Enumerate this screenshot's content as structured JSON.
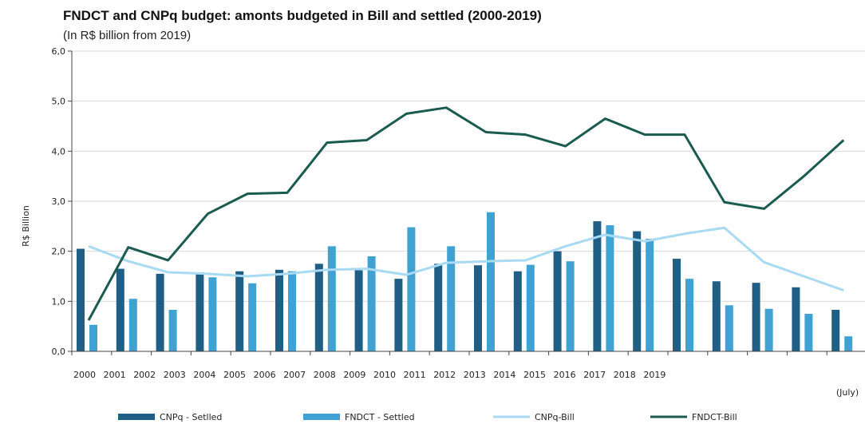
{
  "chart_data": {
    "type": "bar",
    "title": "FNDCT and CNPq budget: amonts budgeted in Bill and settled (2000-2019)",
    "subtitle": "(In R$ billion from 2019)",
    "ylabel": "R$ Billion",
    "ylim": [
      0,
      6
    ],
    "yticks": [
      "0,0",
      "1,0",
      "2,0",
      "3,0",
      "4,0",
      "5,0",
      "6,0"
    ],
    "categories": [
      "2000",
      "2001",
      "2002",
      "2003",
      "2004",
      "2005",
      "2006",
      "2007",
      "2008",
      "2009",
      "2010",
      "2011",
      "2012",
      "2013",
      "2014",
      "2015",
      "2016",
      "2017",
      "2018",
      "2019"
    ],
    "x_tick_labels": [
      "2000",
      "2001",
      "2002",
      "2003",
      "2004",
      "2005",
      "2006",
      "2007",
      "2008",
      "2009",
      "2010",
      "2011",
      "2012",
      "2013",
      "2014",
      "2015",
      "2016",
      "2017",
      "2018",
      "2019"
    ],
    "x_note": "(July)",
    "grid": true,
    "legend_position": "bottom",
    "series": [
      {
        "name": "CNPq - Setlled",
        "kind": "bar",
        "color": "#1f5f85",
        "values": [
          2.05,
          1.65,
          1.55,
          1.58,
          1.6,
          1.63,
          1.75,
          1.62,
          1.45,
          1.75,
          1.72,
          1.6,
          2.0,
          2.6,
          2.4,
          1.85,
          1.4,
          1.37,
          1.28,
          0.83
        ]
      },
      {
        "name": "FNDCT - Settled",
        "kind": "bar",
        "color": "#3fa2d2",
        "values": [
          0.53,
          1.05,
          0.83,
          1.48,
          1.36,
          1.6,
          2.1,
          1.9,
          2.48,
          2.1,
          2.78,
          1.73,
          1.8,
          2.52,
          2.25,
          1.45,
          0.92,
          0.85,
          0.75,
          0.3
        ]
      },
      {
        "name": "CNPq-Bill",
        "kind": "line",
        "color": "#a8daf3",
        "values": [
          2.1,
          1.8,
          1.58,
          1.55,
          1.5,
          1.55,
          1.63,
          1.65,
          1.53,
          1.77,
          1.8,
          1.82,
          2.1,
          2.33,
          2.2,
          2.35,
          2.47,
          1.78,
          1.5,
          1.22
        ]
      },
      {
        "name": "FNDCT-Bill",
        "kind": "line",
        "color": "#1a5b50",
        "values": [
          0.62,
          2.08,
          1.82,
          2.75,
          3.15,
          3.17,
          4.17,
          4.22,
          4.75,
          4.87,
          4.38,
          4.33,
          4.1,
          4.65,
          4.33,
          4.33,
          2.98,
          2.85,
          3.5,
          4.22
        ]
      }
    ]
  }
}
